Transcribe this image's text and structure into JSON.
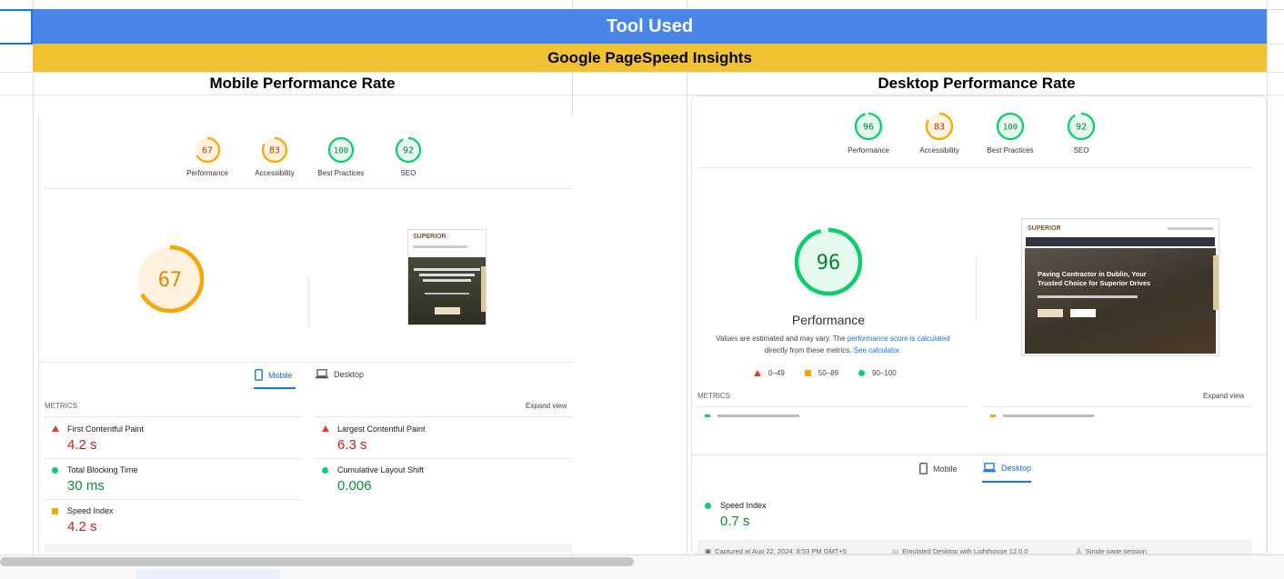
{
  "header": {
    "tool_used": "Tool Used",
    "tool_name": "Google PageSpeed Insights",
    "mobile_title": "Mobile Performance Rate",
    "desktop_title": "Desktop Performance Rate"
  },
  "colors": {
    "blue_band": "#4a86e8",
    "yellow_band": "#f1c232",
    "orange": "#ffa400",
    "green": "#0cce6b",
    "red": "#e33b2e"
  },
  "mobile": {
    "scores": [
      {
        "label": "Performance",
        "value": "67",
        "status": "orange"
      },
      {
        "label": "Accessibility",
        "value": "83",
        "status": "orange"
      },
      {
        "label": "Best Practices",
        "value": "100",
        "status": "green"
      },
      {
        "label": "SEO",
        "value": "92",
        "status": "green"
      }
    ],
    "big_score": "67",
    "tabs": {
      "mobile": "Mobile",
      "desktop": "Desktop"
    },
    "metrics_title": "METRICS",
    "expand": "Expand view",
    "metrics": [
      {
        "label": "First Contentful Paint",
        "value": "4.2 s",
        "status": "red"
      },
      {
        "label": "Largest Contentful Paint",
        "value": "6.3 s",
        "status": "red"
      },
      {
        "label": "Total Blocking Time",
        "value": "30 ms",
        "status": "green"
      },
      {
        "label": "Cumulative Layout Shift",
        "value": "0.006",
        "status": "green"
      },
      {
        "label": "Speed Index",
        "value": "4.2 s",
        "status": "orange"
      }
    ]
  },
  "desktop": {
    "scores": [
      {
        "label": "Performance",
        "value": "96",
        "status": "green"
      },
      {
        "label": "Accessibility",
        "value": "83",
        "status": "orange"
      },
      {
        "label": "Best Practices",
        "value": "100",
        "status": "green"
      },
      {
        "label": "SEO",
        "value": "92",
        "status": "green"
      }
    ],
    "big_score": "96",
    "big_label": "Performance",
    "note_part1": "Values are estimated and may vary. The",
    "note_link1": "performance score is calculated",
    "note_part2": "directly from these metrics.",
    "note_link2": "See calculator.",
    "legend": [
      {
        "range": "0–49",
        "status": "red"
      },
      {
        "range": "50–89",
        "status": "orange"
      },
      {
        "range": "90–100",
        "status": "green"
      }
    ],
    "metrics_title": "METRICS",
    "expand": "Expand view",
    "tabs": {
      "mobile": "Mobile",
      "desktop": "Desktop"
    },
    "metrics": [
      {
        "label": "Speed Index",
        "value": "0.7 s",
        "status": "green"
      }
    ],
    "footer": {
      "captured": "Captured at Aug 22, 2024, 8:53 PM GMT+5",
      "emulated": "Emulated Desktop with Lighthouse 12.0.0",
      "session": "Single page session"
    }
  },
  "site_preview": {
    "brand": "SUPERIOR",
    "headline": "Paving Contractor in Dublin, Your Trusted Choice for Superior Drives"
  }
}
